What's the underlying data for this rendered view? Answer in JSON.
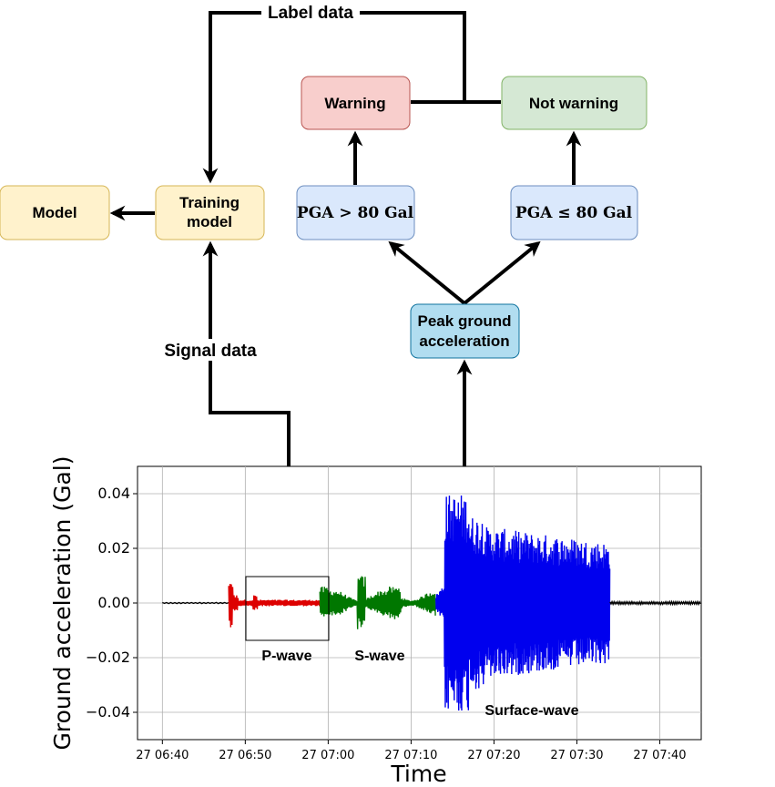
{
  "nodes": {
    "model": "Model",
    "training_line1": "Training",
    "training_line2": "model",
    "warning": "Warning",
    "not_warning": "Not warning",
    "pga_gt": "PGA > 80 Gal",
    "pga_le": "PGA ≤ 80 Gal",
    "peak_line1": "Peak ground",
    "peak_line2": "acceleration"
  },
  "edge_labels": {
    "label_data": "Label data",
    "signal_data": "Signal data"
  },
  "colors": {
    "model_fill": "#fff2cc",
    "model_stroke": "#d6b656",
    "warning_fill": "#f8cecc",
    "warning_stroke": "#b85450",
    "notwarning_fill": "#d5e8d4",
    "notwarning_stroke": "#82b366",
    "pga_fill": "#dae8fc",
    "pga_stroke": "#6c8ebf",
    "peak_fill": "#b1ddf0",
    "peak_stroke": "#10739e",
    "p_wave": "#dd0000",
    "s_wave": "#007700",
    "surface_wave": "#0000ee",
    "noise": "#000000"
  },
  "chart_data": {
    "type": "line",
    "xlabel": "Time",
    "ylabel": "Ground acceleration (Gal)",
    "x_ticks": [
      "27 06:40",
      "27 06:50",
      "27 07:00",
      "27 07:10",
      "27 07:20",
      "27 07:30",
      "27 07:40"
    ],
    "y_ticks": [
      "0.04",
      "0.02",
      "0.00",
      "−0.02",
      "−0.04"
    ],
    "ylim": [
      -0.05,
      0.05
    ],
    "xlim_minutes_from_0640": [
      -3,
      65
    ],
    "grid": true,
    "segments": [
      {
        "name": "noise-before",
        "label": "",
        "color": "#000000",
        "t_start_min": 0,
        "t_end_min": 8,
        "peak": 0.0004
      },
      {
        "name": "p-wave",
        "label": "P-wave",
        "color": "#dd0000",
        "t_start_min": 8,
        "t_end_min": 19,
        "peak": 0.0065,
        "min": -0.012
      },
      {
        "name": "s-wave",
        "label": "S-wave",
        "color": "#007700",
        "t_start_min": 19,
        "t_end_min": 33,
        "peak": 0.011,
        "min": -0.011
      },
      {
        "name": "surface-wave",
        "label": "Surface-wave",
        "color": "#0000ee",
        "t_start_min": 33,
        "t_end_min": 54,
        "peak": 0.046,
        "min": -0.044
      },
      {
        "name": "noise-after",
        "label": "",
        "color": "#000000",
        "t_start_min": 54,
        "t_end_min": 65,
        "peak": 0.0008
      }
    ]
  }
}
